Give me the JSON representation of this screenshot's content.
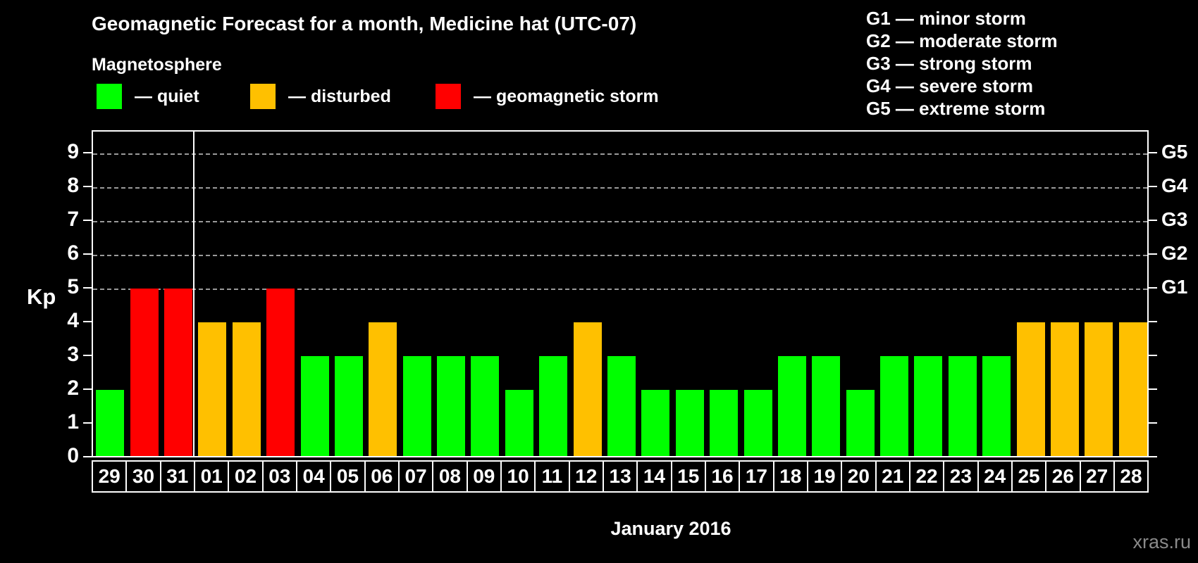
{
  "title": "Geomagnetic Forecast for a month, Medicine hat (UTC-07)",
  "subtitle": "Magnetosphere",
  "legend": [
    {
      "key": "quiet",
      "label": "— quiet"
    },
    {
      "key": "disturbed",
      "label": "— disturbed"
    },
    {
      "key": "storm",
      "label": "— geomagnetic storm"
    }
  ],
  "palette": {
    "quiet": "#00ff00",
    "disturbed": "#ffc000",
    "storm": "#ff0000",
    "grid": "#9a9a9a",
    "axis": "#ffffff",
    "background": "#000000",
    "watermark_text": "#8a8a8a"
  },
  "g_scale_legend": [
    "G1 — minor storm",
    "G2 — moderate storm",
    "G3 — strong storm",
    "G4 — severe storm",
    "G5 — extreme storm"
  ],
  "chart_data": {
    "type": "bar",
    "title": "Geomagnetic Forecast for a month, Medicine hat (UTC-07)",
    "xlabel": "January 2016",
    "ylabel": "Kp",
    "ylim": [
      0,
      9.65
    ],
    "grid": "dashed horizontal lines at Kp 5,6,7,8,9 only",
    "legend_position": "top-left (magnetosphere states), top-right (G storm scale)",
    "categories": [
      "29",
      "30",
      "31",
      "01",
      "02",
      "03",
      "04",
      "05",
      "06",
      "07",
      "08",
      "09",
      "10",
      "11",
      "12",
      "13",
      "14",
      "15",
      "16",
      "17",
      "18",
      "19",
      "20",
      "21",
      "22",
      "23",
      "24",
      "25",
      "26",
      "27",
      "28"
    ],
    "values": [
      2,
      5,
      5,
      4,
      4,
      5,
      3,
      3,
      4,
      3,
      3,
      3,
      2,
      3,
      4,
      3,
      2,
      2,
      2,
      2,
      3,
      3,
      2,
      3,
      3,
      3,
      3,
      4,
      4,
      4,
      4
    ],
    "statuses": [
      "quiet",
      "storm",
      "storm",
      "disturbed",
      "disturbed",
      "storm",
      "quiet",
      "quiet",
      "disturbed",
      "quiet",
      "quiet",
      "quiet",
      "quiet",
      "quiet",
      "disturbed",
      "quiet",
      "quiet",
      "quiet",
      "quiet",
      "quiet",
      "quiet",
      "quiet",
      "quiet",
      "quiet",
      "quiet",
      "quiet",
      "quiet",
      "disturbed",
      "disturbed",
      "disturbed",
      "disturbed"
    ],
    "month_boundary_after_index": 2,
    "left_axis_ticks": [
      0,
      1,
      2,
      3,
      4,
      5,
      6,
      7,
      8,
      9
    ],
    "right_axis_labels": {
      "5": "G1",
      "6": "G2",
      "7": "G3",
      "8": "G4",
      "9": "G5"
    },
    "gridline_levels": [
      5,
      6,
      7,
      8,
      9
    ]
  },
  "footer": {
    "xaxis_title": "January 2016",
    "watermark": "xras.ru"
  }
}
